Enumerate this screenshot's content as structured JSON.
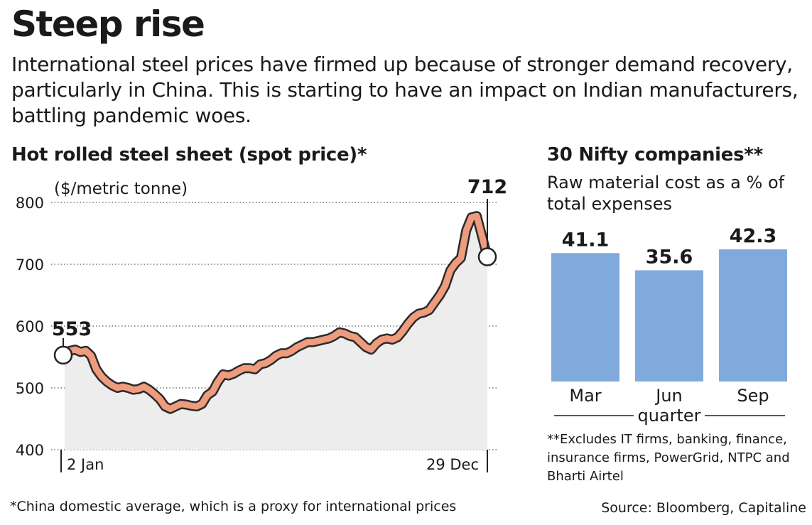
{
  "headline": "Steep rise",
  "intro": "International steel prices have firmed up because of stronger demand recovery, particularly in China. This is starting to have an impact on Indian manufacturers, battling pandemic woes.",
  "footnote": "*China domestic average, which is a proxy for international prices",
  "source": "Source: Bloomberg, Capitaline",
  "colors": {
    "line": "#ee9b7e",
    "line_outline": "#2a2a2a",
    "area": "#ededed",
    "bar": "#80aadc",
    "text": "#1a1a1a"
  },
  "chart_data": [
    {
      "type": "line",
      "title": "Hot rolled steel sheet (spot price)*",
      "unit_label": "($/metric tonne)",
      "ylim": [
        400,
        800
      ],
      "yticks": [
        400,
        500,
        600,
        700,
        800
      ],
      "grid": true,
      "x_start_label": "2 Jan",
      "x_end_label": "29 Dec",
      "start_value": 553,
      "end_value": 712,
      "start_label": "553",
      "end_label": "712",
      "values": [
        553,
        560,
        562,
        558,
        560,
        552,
        530,
        518,
        510,
        504,
        500,
        502,
        500,
        497,
        498,
        502,
        497,
        490,
        482,
        470,
        466,
        470,
        474,
        473,
        471,
        470,
        474,
        488,
        494,
        510,
        522,
        520,
        523,
        528,
        532,
        532,
        530,
        538,
        540,
        545,
        552,
        556,
        556,
        560,
        566,
        570,
        574,
        574,
        576,
        578,
        580,
        584,
        590,
        588,
        584,
        582,
        574,
        566,
        562,
        572,
        578,
        580,
        578,
        582,
        592,
        604,
        614,
        620,
        622,
        626,
        638,
        650,
        665,
        690,
        702,
        710,
        755,
        776,
        778,
        745,
        712
      ]
    },
    {
      "type": "bar",
      "title": "30 Nifty companies**",
      "subtitle": "Raw material cost as a % of total expenses",
      "categories": [
        "Mar",
        "Jun",
        "Sep"
      ],
      "xlabel": "quarter",
      "values": [
        41.1,
        35.6,
        42.3
      ],
      "value_labels": [
        "41.1",
        "35.6",
        "42.3"
      ],
      "note": "**Excludes IT firms, banking, finance, insurance firms, PowerGrid, NTPC and Bharti Airtel"
    }
  ]
}
